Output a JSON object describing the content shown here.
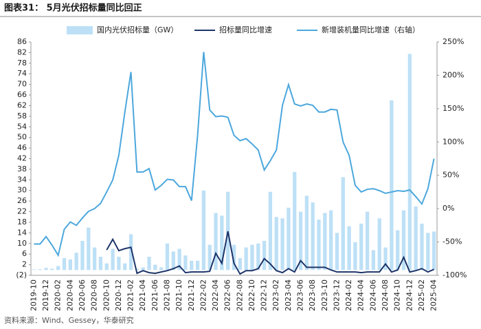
{
  "chart_data": {
    "type": "bar_line",
    "title": "图表31：  5月光伏招标量同比回正",
    "source": "资料来源：Wind、Gessey，华泰研究",
    "legend": "top",
    "categories": [
      "2019-10",
      null,
      "2019-12",
      null,
      "2020-02",
      null,
      "2020-04",
      null,
      "2020-06",
      null,
      "2020-08",
      null,
      "2020-10",
      null,
      "2020-12",
      null,
      "2021-02",
      null,
      "2021-04",
      null,
      "2021-06",
      null,
      "2021-08",
      null,
      "2021-10",
      null,
      "2021-12",
      null,
      "2022-02",
      null,
      "2022-04",
      null,
      "2022-06",
      null,
      "2022-08",
      null,
      "2022-10",
      null,
      "2022-12",
      null,
      "2023-02",
      null,
      "2023-04",
      null,
      "2023-06",
      null,
      "2023-08",
      null,
      "2023-10",
      null,
      "2023-12",
      null,
      "2024-02",
      null,
      "2024-04",
      null,
      "2024-06",
      null,
      "2024-08",
      null,
      "2024-10",
      null,
      "2024-12",
      null,
      "2025-02",
      null,
      "2025-04"
    ],
    "series": [
      {
        "name": "国内光伏招标量（GW）",
        "type": "bar",
        "color": "#bde0f6",
        "values": [
          0.2,
          0.3,
          0.8,
          0.5,
          1.5,
          4.5,
          4,
          6.5,
          11,
          16,
          8.5,
          5,
          2.5,
          8,
          5,
          2.5,
          13.5,
          0.5,
          1,
          5,
          2,
          1,
          10,
          7,
          8,
          5.5,
          3.5,
          3.5,
          30,
          9.5,
          21.5,
          20.5,
          29.5,
          9.5,
          4.5,
          8.5,
          9.5,
          10,
          11,
          29.5,
          20,
          19.5,
          23.5,
          37,
          22,
          28,
          25.5,
          19,
          21.5,
          22.5,
          14,
          35,
          16.5,
          10.5,
          17.5,
          22,
          7.5,
          19.5,
          8.5,
          64,
          15,
          22.5,
          81.5,
          24,
          17.5,
          14,
          14.5
        ]
      },
      {
        "name": "招标量同比增速",
        "type": "line",
        "axis": "y2",
        "color": "#1c3468",
        "values": [
          null,
          null,
          null,
          null,
          null,
          null,
          null,
          null,
          null,
          null,
          null,
          null,
          -62,
          -46,
          -63,
          -60,
          -58,
          -97,
          -93,
          -96,
          -97,
          -95,
          -93,
          -90,
          -86,
          -96,
          -95,
          -95,
          -95,
          -94,
          -67,
          -82,
          -34,
          -82,
          -98,
          -93,
          -93,
          -90,
          -75,
          -83,
          -93,
          -96,
          -90,
          -95,
          -78,
          -88,
          -88,
          -88,
          -88,
          -92,
          -95,
          -95,
          -95,
          -95,
          -96,
          -95,
          -95,
          -95,
          -83,
          -95,
          -92,
          -73,
          -95,
          -93,
          -90,
          -95,
          -91
        ]
      },
      {
        "name": "新增装机量同比增速（右轴）",
        "type": "line",
        "axis": "y2",
        "color": "#4ba7dd",
        "values": [
          -53,
          -53,
          -42,
          -55,
          -70,
          -31,
          -20,
          -25,
          -14,
          -4,
          0,
          8,
          25,
          43,
          80,
          145,
          205,
          55,
          55,
          60,
          28,
          35,
          44,
          43,
          33,
          33,
          12,
          110,
          235,
          148,
          138,
          139,
          137,
          110,
          102,
          105,
          97,
          88,
          58,
          72,
          88,
          155,
          186,
          157,
          154,
          157,
          155,
          145,
          145,
          149,
          148,
          100,
          80,
          35,
          25,
          29,
          30,
          27,
          23,
          25,
          27,
          26,
          28,
          18,
          7,
          30,
          75
        ]
      }
    ],
    "ylim": [
      -2,
      86
    ],
    "yticks": [
      {
        "value": -2,
        "label": "(2)"
      },
      2,
      6,
      10,
      14,
      18,
      22,
      26,
      30,
      34,
      38,
      42,
      46,
      50,
      54,
      58,
      62,
      66,
      70,
      74,
      78,
      82,
      86
    ],
    "y2lim": [
      -100,
      250
    ],
    "y2ticks": [
      {
        "value": -100,
        "label": "-100%"
      },
      {
        "value": -50,
        "label": "-50%"
      },
      {
        "value": 0,
        "label": "0%"
      },
      {
        "value": 50,
        "label": "50%"
      },
      {
        "value": 100,
        "label": "100%"
      },
      {
        "value": 150,
        "label": "150%"
      },
      {
        "value": 200,
        "label": "200%"
      },
      {
        "value": 250,
        "label": "250%"
      }
    ],
    "grid": false
  }
}
